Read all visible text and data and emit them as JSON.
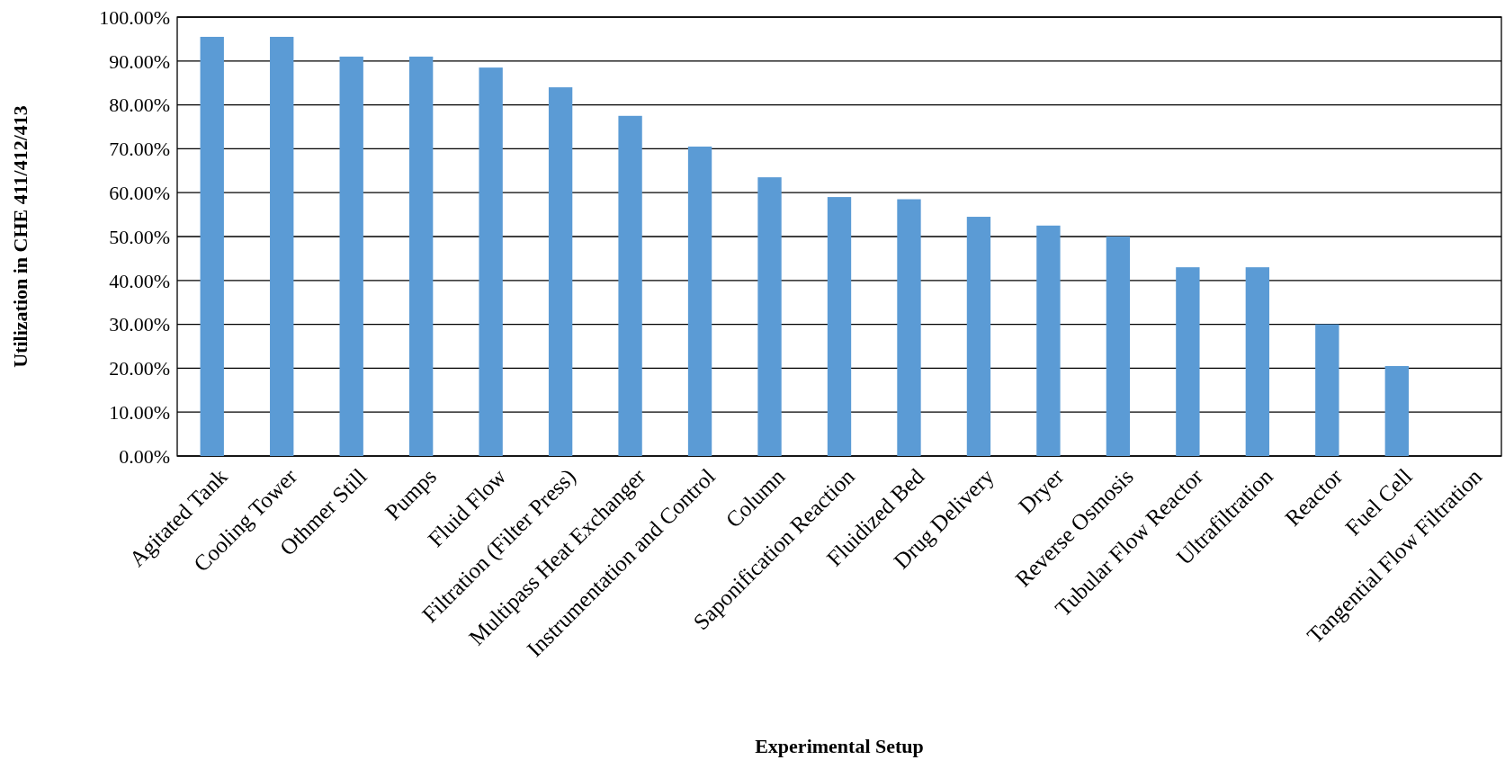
{
  "chart_data": {
    "type": "bar",
    "xlabel": "Experimental Setup",
    "ylabel": "Utilization in CHE 411/412/413",
    "categories": [
      "Agitated Tank",
      "Cooling Tower",
      "Othmer Still",
      "Pumps",
      "Fluid Flow",
      "Filtration (Filter Press)",
      "Multipass Heat Exchanger",
      "Instrumentation and Control",
      "Column",
      "Saponification Reaction",
      "Fluidized Bed",
      "Drug Delivery",
      "Dryer",
      "Reverse Osmosis",
      "Tubular Flow Reactor",
      "Ultrafiltration",
      "Reactor",
      "Fuel Cell",
      "Tangential Flow Filtration"
    ],
    "values": [
      95.5,
      95.5,
      91,
      91,
      88.5,
      84,
      77.5,
      70.5,
      63.5,
      59,
      58.5,
      54.5,
      52.5,
      50,
      43,
      43,
      30,
      20.5,
      0
    ],
    "color": "#5b9bd5",
    "ylim": [
      0,
      100
    ],
    "yticks": [
      {
        "value": 0,
        "label": "0.00%"
      },
      {
        "value": 10,
        "label": "10.00%"
      },
      {
        "value": 20,
        "label": "20.00%"
      },
      {
        "value": 30,
        "label": "30.00%"
      },
      {
        "value": 40,
        "label": "40.00%"
      },
      {
        "value": 50,
        "label": "50.00%"
      },
      {
        "value": 60,
        "label": "60.00%"
      },
      {
        "value": 70,
        "label": "70.00%"
      },
      {
        "value": 80,
        "label": "80.00%"
      },
      {
        "value": 90,
        "label": "90.00%"
      },
      {
        "value": 100,
        "label": "100.00%"
      }
    ],
    "grid": "y"
  }
}
